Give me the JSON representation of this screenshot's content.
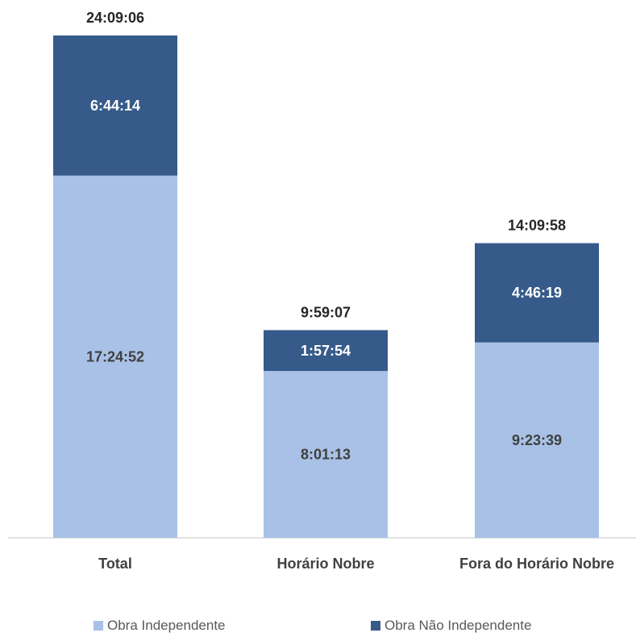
{
  "chart_data": {
    "type": "bar",
    "stacked": true,
    "categories": [
      "Total",
      "Horário Nobre",
      "Fora do Horário Nobre"
    ],
    "ylim_seconds": [
      0,
      90000
    ],
    "grid": false,
    "legend_position": "bottom",
    "series": [
      {
        "name": "Obra Independente",
        "color": "#A9C1E6",
        "label_color": "#404040",
        "labels": [
          "17:24:52",
          "8:01:13",
          "9:23:39"
        ],
        "values_seconds": [
          62692,
          28873,
          33819
        ]
      },
      {
        "name": "Obra Não Independente",
        "color": "#365A89",
        "label_color": "#FFFFFF",
        "labels": [
          "6:44:14",
          "1:57:54",
          "4:46:19"
        ],
        "values_seconds": [
          24254,
          7074,
          17179
        ]
      }
    ],
    "totals": [
      "24:09:06",
      "9:59:07",
      "14:09:58"
    ]
  }
}
